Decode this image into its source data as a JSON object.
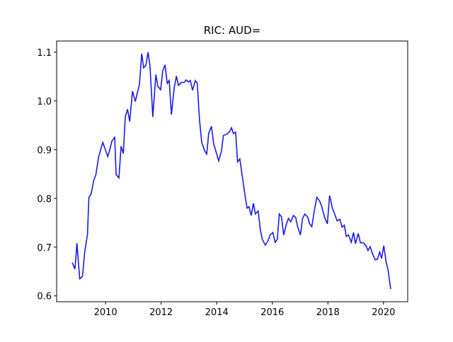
{
  "chart_data": {
    "type": "line",
    "title": "RIC: AUD=",
    "x": [
      2008.8,
      2008.9,
      2008.97,
      2009.07,
      2009.17,
      2009.25,
      2009.35,
      2009.4,
      2009.48,
      2009.58,
      2009.65,
      2009.75,
      2009.9,
      2010.08,
      2010.15,
      2010.23,
      2010.33,
      2010.38,
      2010.48,
      2010.56,
      2010.64,
      2010.71,
      2010.79,
      2010.87,
      2010.97,
      2011.07,
      2011.15,
      2011.22,
      2011.3,
      2011.37,
      2011.45,
      2011.53,
      2011.6,
      2011.7,
      2011.81,
      2011.88,
      2011.98,
      2012.06,
      2012.14,
      2012.22,
      2012.29,
      2012.37,
      2012.47,
      2012.55,
      2012.62,
      2012.73,
      2012.83,
      2012.9,
      2012.98,
      2013.05,
      2013.13,
      2013.23,
      2013.3,
      2013.38,
      2013.46,
      2013.56,
      2013.64,
      2013.71,
      2013.81,
      2013.89,
      2013.99,
      2014.07,
      2014.17,
      2014.24,
      2014.37,
      2014.45,
      2014.53,
      2014.6,
      2014.68,
      2014.75,
      2014.83,
      2014.91,
      2015.01,
      2015.09,
      2015.16,
      2015.24,
      2015.32,
      2015.39,
      2015.49,
      2015.57,
      2015.64,
      2015.75,
      2015.85,
      2015.92,
      2016.02,
      2016.1,
      2016.18,
      2016.25,
      2016.33,
      2016.41,
      2016.51,
      2016.58,
      2016.66,
      2016.76,
      2016.84,
      2016.91,
      2017.01,
      2017.09,
      2017.17,
      2017.27,
      2017.34,
      2017.42,
      2017.5,
      2017.6,
      2017.7,
      2017.78,
      2017.88,
      2017.98,
      2018.06,
      2018.16,
      2018.23,
      2018.33,
      2018.43,
      2018.51,
      2018.59,
      2018.66,
      2018.74,
      2018.84,
      2018.92,
      2018.99,
      2019.09,
      2019.17,
      2019.27,
      2019.37,
      2019.44,
      2019.52,
      2019.6,
      2019.7,
      2019.78,
      2019.86,
      2019.93,
      2020.01,
      2020.09,
      2020.16,
      2020.26
    ],
    "values": [
      0.668,
      0.655,
      0.708,
      0.635,
      0.64,
      0.69,
      0.726,
      0.802,
      0.809,
      0.838,
      0.848,
      0.885,
      0.915,
      0.886,
      0.899,
      0.918,
      0.925,
      0.849,
      0.842,
      0.907,
      0.892,
      0.967,
      0.983,
      0.958,
      1.02,
      0.999,
      1.018,
      1.034,
      1.097,
      1.068,
      1.073,
      1.1,
      1.071,
      0.967,
      1.054,
      1.03,
      1.023,
      1.062,
      1.074,
      1.036,
      1.042,
      0.972,
      1.027,
      1.051,
      1.032,
      1.038,
      1.038,
      1.043,
      1.039,
      1.042,
      1.022,
      1.042,
      1.036,
      0.961,
      0.915,
      0.898,
      0.891,
      0.933,
      0.948,
      0.912,
      0.893,
      0.877,
      0.897,
      0.929,
      0.932,
      0.936,
      0.945,
      0.933,
      0.936,
      0.875,
      0.881,
      0.849,
      0.809,
      0.78,
      0.783,
      0.765,
      0.79,
      0.768,
      0.774,
      0.735,
      0.716,
      0.704,
      0.714,
      0.725,
      0.73,
      0.71,
      0.716,
      0.768,
      0.762,
      0.725,
      0.748,
      0.759,
      0.752,
      0.765,
      0.761,
      0.742,
      0.725,
      0.759,
      0.768,
      0.762,
      0.748,
      0.742,
      0.771,
      0.802,
      0.795,
      0.783,
      0.761,
      0.748,
      0.806,
      0.78,
      0.77,
      0.754,
      0.757,
      0.741,
      0.745,
      0.722,
      0.725,
      0.71,
      0.73,
      0.707,
      0.728,
      0.709,
      0.709,
      0.703,
      0.693,
      0.701,
      0.687,
      0.674,
      0.675,
      0.69,
      0.677,
      0.703,
      0.671,
      0.654,
      0.614
    ],
    "color": "#1a1ae6",
    "xlim": [
      2008.24,
      2020.87
    ],
    "xticks": [
      2010,
      2012,
      2014,
      2016,
      2018,
      2020
    ],
    "ylim": [
      0.588,
      1.123
    ],
    "yticks": [
      0.6,
      0.7,
      0.8,
      0.9,
      {
        "value": 1.0,
        "label": "1.0"
      },
      1.1
    ]
  }
}
